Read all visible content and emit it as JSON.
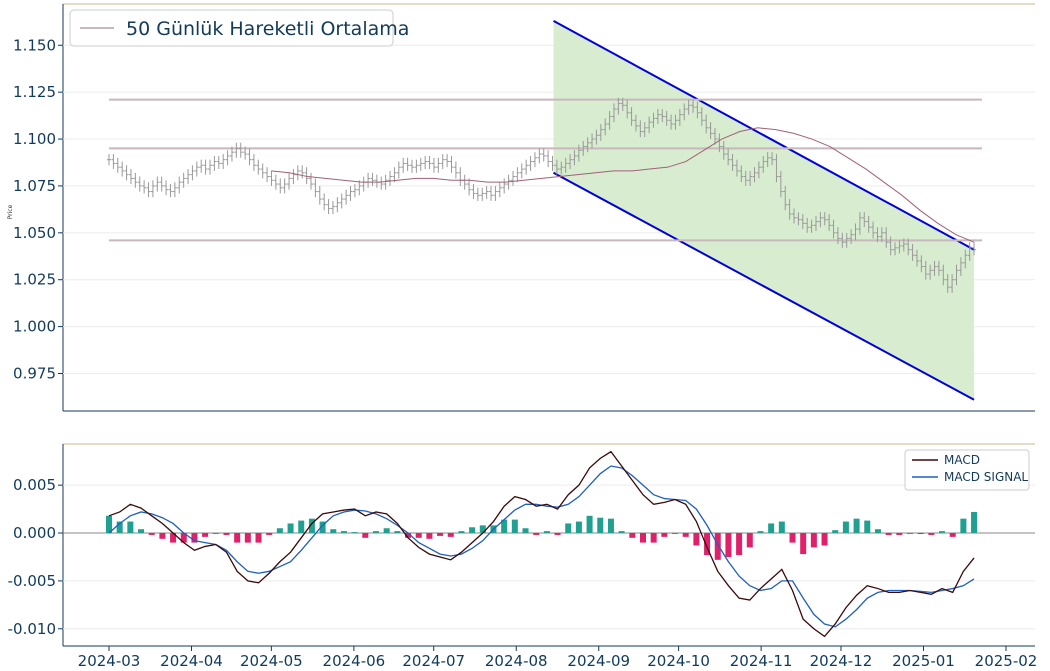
{
  "chart_data": [
    {
      "type": "ohlc",
      "ylabel": "Price",
      "yticks": [
        "1.150",
        "1.125",
        "1.100",
        "1.075",
        "1.050",
        "1.025",
        "1.000",
        "0.975"
      ],
      "ylim": [
        0.955,
        1.172
      ],
      "legend": {
        "label": "50 Günlük Hareketli Ortalama",
        "placement": "top-left"
      },
      "colors": {
        "ohlc": "#999999",
        "ma": "#a0607a",
        "channel": "#0000dd",
        "channel_fill": "#d8ecd0",
        "levels": "#c8b8bc"
      },
      "horizontal_levels": [
        1.121,
        1.095,
        1.046
      ],
      "channel": {
        "start": "2024-08-15",
        "end": "2025-01-20",
        "upper": [
          1.163,
          1.041
        ],
        "lower": [
          1.082,
          0.961
        ]
      },
      "ohlc_close": [
        1.089,
        1.087,
        1.085,
        1.083,
        1.081,
        1.079,
        1.077,
        1.075,
        1.074,
        1.072,
        1.075,
        1.077,
        1.075,
        1.073,
        1.072,
        1.074,
        1.077,
        1.079,
        1.081,
        1.083,
        1.085,
        1.086,
        1.084,
        1.086,
        1.088,
        1.087,
        1.089,
        1.091,
        1.093,
        1.095,
        1.093,
        1.092,
        1.089,
        1.086,
        1.084,
        1.082,
        1.08,
        1.078,
        1.076,
        1.074,
        1.076,
        1.079,
        1.081,
        1.083,
        1.082,
        1.079,
        1.076,
        1.072,
        1.068,
        1.065,
        1.063,
        1.064,
        1.066,
        1.068,
        1.07,
        1.072,
        1.073,
        1.075,
        1.077,
        1.079,
        1.078,
        1.077,
        1.076,
        1.078,
        1.08,
        1.082,
        1.085,
        1.087,
        1.086,
        1.085,
        1.086,
        1.087,
        1.088,
        1.087,
        1.085,
        1.087,
        1.089,
        1.088,
        1.085,
        1.082,
        1.078,
        1.076,
        1.073,
        1.071,
        1.07,
        1.071,
        1.072,
        1.07,
        1.072,
        1.074,
        1.076,
        1.078,
        1.08,
        1.082,
        1.084,
        1.086,
        1.088,
        1.09,
        1.092,
        1.091,
        1.088,
        1.086,
        1.084,
        1.085,
        1.087,
        1.089,
        1.091,
        1.094,
        1.096,
        1.098,
        1.1,
        1.102,
        1.105,
        1.108,
        1.112,
        1.116,
        1.119,
        1.118,
        1.114,
        1.11,
        1.107,
        1.104,
        1.106,
        1.109,
        1.111,
        1.113,
        1.112,
        1.11,
        1.108,
        1.11,
        1.113,
        1.116,
        1.118,
        1.117,
        1.114,
        1.11,
        1.106,
        1.103,
        1.1,
        1.096,
        1.092,
        1.089,
        1.086,
        1.083,
        1.08,
        1.078,
        1.08,
        1.082,
        1.085,
        1.088,
        1.09,
        1.089,
        1.08,
        1.072,
        1.065,
        1.06,
        1.058,
        1.057,
        1.055,
        1.053,
        1.054,
        1.056,
        1.058,
        1.057,
        1.054,
        1.05,
        1.047,
        1.045,
        1.047,
        1.049,
        1.052,
        1.058,
        1.056,
        1.053,
        1.05,
        1.048,
        1.05,
        1.045,
        1.041,
        1.042,
        1.043,
        1.044,
        1.041,
        1.038,
        1.035,
        1.032,
        1.028,
        1.03,
        1.032,
        1.03,
        1.025,
        1.021,
        1.025,
        1.03,
        1.034,
        1.038,
        1.042,
        1.041
      ],
      "ma_values": [
        1.083,
        1.082,
        1.08,
        1.079,
        1.078,
        1.077,
        1.077,
        1.078,
        1.079,
        1.079,
        1.078,
        1.078,
        1.077,
        1.077,
        1.078,
        1.079,
        1.08,
        1.081,
        1.082,
        1.083,
        1.083,
        1.084,
        1.085,
        1.088,
        1.094,
        1.1,
        1.104,
        1.106,
        1.105,
        1.103,
        1.1,
        1.096,
        1.09,
        1.084,
        1.077,
        1.07,
        1.062,
        1.055,
        1.049,
        1.045
      ],
      "ma_start": "2024-05-01"
    },
    {
      "type": "bar_line",
      "yticks": [
        "0.005",
        "0.000",
        "-0.005",
        "-0.010"
      ],
      "ylim": [
        -0.0118,
        0.0093
      ],
      "xticks": [
        "2024-03",
        "2024-04",
        "2024-05",
        "2024-06",
        "2024-07",
        "2024-08",
        "2024-09",
        "2024-10",
        "2024-11",
        "2024-12",
        "2025-01",
        "2025-02"
      ],
      "series": [
        {
          "name": "MACD",
          "color": "#3a0a0a"
        },
        {
          "name": "MACD SIGNAL",
          "color": "#1f5fbf"
        }
      ],
      "legend_placement": "top-right",
      "histogram_colors": {
        "positive": "#20a090",
        "negative": "#e0206a"
      },
      "macd": [
        0.0018,
        0.0022,
        0.003,
        0.0026,
        0.0018,
        0.001,
        0.0,
        -0.001,
        -0.0018,
        -0.0014,
        -0.0012,
        -0.002,
        -0.004,
        -0.005,
        -0.0052,
        -0.0042,
        -0.003,
        -0.002,
        -0.0005,
        0.001,
        0.002,
        0.0022,
        0.0024,
        0.0025,
        0.0018,
        0.0022,
        0.002,
        0.001,
        -0.0005,
        -0.0015,
        -0.0022,
        -0.0025,
        -0.0028,
        -0.002,
        -0.001,
        0.0,
        0.0012,
        0.0028,
        0.0038,
        0.0035,
        0.0028,
        0.003,
        0.0025,
        0.004,
        0.005,
        0.0068,
        0.0078,
        0.0085,
        0.007,
        0.0055,
        0.004,
        0.003,
        0.0032,
        0.0035,
        0.003,
        0.0012,
        -0.0015,
        -0.004,
        -0.0055,
        -0.0068,
        -0.007,
        -0.0058,
        -0.0048,
        -0.0038,
        -0.006,
        -0.009,
        -0.01,
        -0.0108,
        -0.0095,
        -0.0078,
        -0.0065,
        -0.0055,
        -0.0058,
        -0.0062,
        -0.0062,
        -0.006,
        -0.0062,
        -0.0064,
        -0.0058,
        -0.0062,
        -0.004,
        -0.0026
      ],
      "signal": [
        0.0,
        0.001,
        0.0018,
        0.0022,
        0.002,
        0.0016,
        0.001,
        0.0,
        -0.0008,
        -0.001,
        -0.0012,
        -0.0018,
        -0.003,
        -0.004,
        -0.0042,
        -0.004,
        -0.0035,
        -0.003,
        -0.0018,
        -0.0005,
        0.0008,
        0.0018,
        0.0022,
        0.0024,
        0.0023,
        0.002,
        0.0015,
        0.0008,
        0.0,
        -0.001,
        -0.0016,
        -0.0022,
        -0.0024,
        -0.0022,
        -0.0016,
        -0.0008,
        0.0004,
        0.0014,
        0.0024,
        0.003,
        0.003,
        0.0028,
        0.0027,
        0.003,
        0.0038,
        0.005,
        0.0062,
        0.007,
        0.0068,
        0.006,
        0.005,
        0.004,
        0.0036,
        0.0035,
        0.0034,
        0.0025,
        0.0008,
        -0.0012,
        -0.003,
        -0.0045,
        -0.0055,
        -0.006,
        -0.0058,
        -0.005,
        -0.005,
        -0.0068,
        -0.0085,
        -0.0095,
        -0.0098,
        -0.009,
        -0.008,
        -0.0068,
        -0.0062,
        -0.006,
        -0.006,
        -0.006,
        -0.0061,
        -0.0062,
        -0.006,
        -0.0058,
        -0.0055,
        -0.0048
      ]
    }
  ]
}
